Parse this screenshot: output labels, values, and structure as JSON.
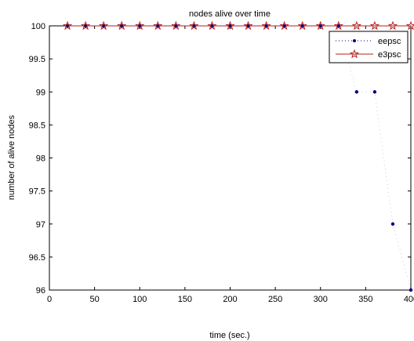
{
  "chart_data": {
    "type": "line",
    "title": "nodes alive over time",
    "xlabel": "time (sec.)",
    "ylabel": "number of alive nodes",
    "xlim": [
      0,
      400
    ],
    "ylim": [
      96,
      100
    ],
    "xticks": [
      0,
      50,
      100,
      150,
      200,
      250,
      300,
      350,
      400
    ],
    "xtick_labels": [
      "0",
      "50",
      "100",
      "150",
      "200",
      "250",
      "300",
      "350",
      "400"
    ],
    "yticks": [
      96,
      96.5,
      97,
      97.5,
      98,
      98.5,
      99,
      99.5,
      100
    ],
    "ytick_labels": [
      "96",
      "96.5",
      "97",
      "97.5",
      "98",
      "98.5",
      "99",
      "99.5",
      "100"
    ],
    "grid": false,
    "legend_position": "top-right",
    "series": [
      {
        "name": "eepsc",
        "color": "#00008b",
        "line_style": "dotted",
        "marker": "dot",
        "x": [
          20,
          40,
          60,
          80,
          100,
          120,
          140,
          160,
          180,
          200,
          220,
          240,
          260,
          280,
          300,
          320,
          340,
          360,
          380,
          400
        ],
        "y": [
          100,
          100,
          100,
          100,
          100,
          100,
          100,
          100,
          100,
          100,
          100,
          100,
          100,
          100,
          100,
          100,
          99,
          99,
          97,
          96
        ]
      },
      {
        "name": "e3psc",
        "color": "#b22222",
        "line_style": "solid",
        "marker": "star",
        "x": [
          20,
          40,
          60,
          80,
          100,
          120,
          140,
          160,
          180,
          200,
          220,
          240,
          260,
          280,
          300,
          320,
          340,
          360,
          380,
          400
        ],
        "y": [
          100,
          100,
          100,
          100,
          100,
          100,
          100,
          100,
          100,
          100,
          100,
          100,
          100,
          100,
          100,
          100,
          100,
          100,
          100,
          100
        ]
      }
    ]
  }
}
